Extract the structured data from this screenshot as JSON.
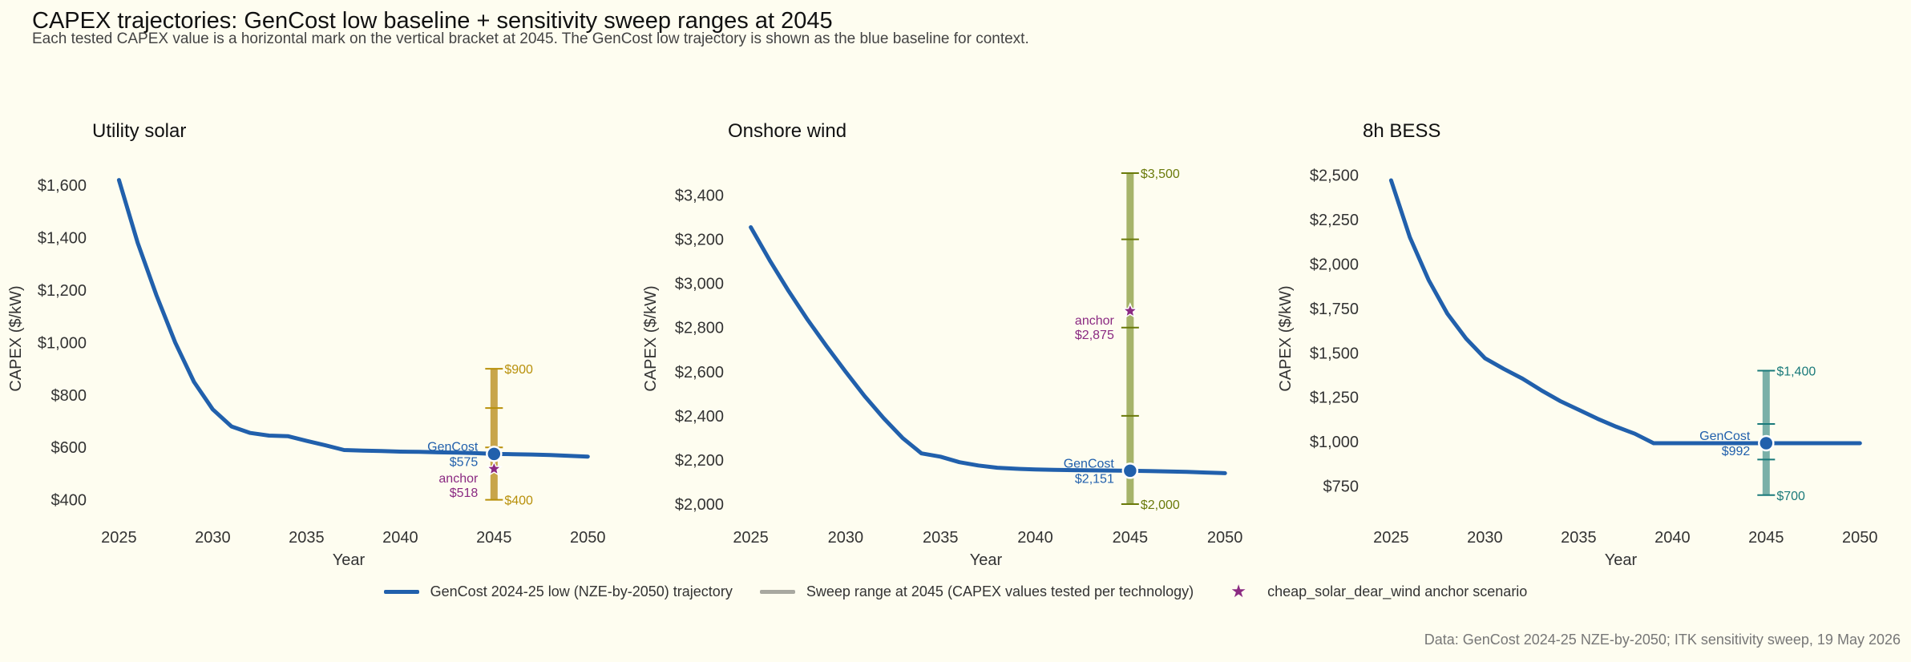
{
  "figure": {
    "title": "CAPEX trajectories: GenCost low baseline + sensitivity sweep ranges at 2045",
    "subtitle": "Each tested CAPEX value is a horizontal mark on the vertical bracket at 2045. The GenCost low trajectory is shown as the blue baseline for context.",
    "source": "Data: GenCost 2024-25 NZE-by-2050; ITK sensitivity sweep, 19 May 2026"
  },
  "legend": {
    "items": [
      {
        "label": "GenCost 2024-25 low (NZE-by-2050) trajectory",
        "color": "#2160ac",
        "kind": "line"
      },
      {
        "label": "Sweep range at 2045 (CAPEX values tested per technology)",
        "color": "#a8a8a0",
        "kind": "line"
      },
      {
        "label": "cheap_solar_dear_wind anchor scenario",
        "color": "#8b2a82",
        "kind": "star"
      }
    ]
  },
  "colors": {
    "baseline": "#2160ac",
    "anchor": "#8b2a82"
  },
  "chart_data": [
    {
      "type": "line",
      "title": "Utility solar",
      "xlabel": "Year",
      "ylabel": "CAPEX ($/kW)",
      "xlim": [
        2024,
        2050.5
      ],
      "ylim": [
        350,
        1680
      ],
      "xticks": [
        2025,
        2030,
        2035,
        2040,
        2045,
        2050
      ],
      "yticks": [
        400,
        600,
        800,
        1000,
        1200,
        1400,
        1600
      ],
      "yticklabels": [
        "$400",
        "$600",
        "$800",
        "$1,000",
        "$1,200",
        "$1,400",
        "$1,600"
      ],
      "baseline": {
        "x": [
          2025,
          2026,
          2027,
          2028,
          2029,
          2030,
          2031,
          2032,
          2033,
          2034,
          2035,
          2036,
          2037,
          2038,
          2039,
          2040,
          2041,
          2042,
          2043,
          2044,
          2045,
          2046,
          2047,
          2048,
          2049,
          2050
        ],
        "y": [
          1620,
          1380,
          1180,
          1000,
          850,
          745,
          680,
          655,
          645,
          643,
          625,
          608,
          590,
          588,
          586,
          584,
          583,
          581,
          580,
          578,
          575,
          574,
          573,
          571,
          568,
          565
        ],
        "marker": {
          "x": 2045,
          "y": 575,
          "label": "GenCost",
          "value_label": "$575"
        }
      },
      "sweep": {
        "x": 2045,
        "color": "#c8a54a",
        "label_color": "#b8900a",
        "values": [
          400,
          600,
          750,
          900
        ],
        "min_label": "$400",
        "max_label": "$900"
      },
      "anchor": {
        "x": 2045,
        "y": 518,
        "label": "anchor",
        "value_label": "$518",
        "label_side": "below"
      }
    },
    {
      "type": "line",
      "title": "Onshore wind",
      "xlabel": "Year",
      "ylabel": "CAPEX ($/kW)",
      "xlim": [
        2024.3,
        2050.5
      ],
      "ylim": [
        1960,
        3540
      ],
      "xticks": [
        2025,
        2030,
        2035,
        2040,
        2045,
        2050
      ],
      "yticks": [
        2000,
        2200,
        2400,
        2600,
        2800,
        3000,
        3200,
        3400
      ],
      "yticklabels": [
        "$2,000",
        "$2,200",
        "$2,400",
        "$2,600",
        "$2,800",
        "$3,000",
        "$3,200",
        "$3,400"
      ],
      "baseline": {
        "x": [
          2025,
          2026,
          2027,
          2028,
          2029,
          2030,
          2031,
          2032,
          2033,
          2034,
          2035,
          2036,
          2037,
          2038,
          2039,
          2040,
          2041,
          2042,
          2043,
          2044,
          2045,
          2046,
          2047,
          2048,
          2049,
          2050
        ],
        "y": [
          3255,
          3105,
          2965,
          2835,
          2715,
          2600,
          2490,
          2390,
          2300,
          2230,
          2215,
          2190,
          2175,
          2165,
          2160,
          2157,
          2155,
          2154,
          2153,
          2152,
          2151,
          2150,
          2148,
          2146,
          2143,
          2140
        ],
        "marker": {
          "x": 2045,
          "y": 2151,
          "label": "GenCost",
          "value_label": "$2,151"
        }
      },
      "sweep": {
        "x": 2045,
        "color": "#a6b46a",
        "label_color": "#6a7a0a",
        "values": [
          2000,
          2400,
          2800,
          3200,
          3500
        ],
        "min_label": "$2,000",
        "max_label": "$3,500"
      },
      "anchor": {
        "x": 2045,
        "y": 2875,
        "label": "anchor",
        "value_label": "$2,875",
        "label_side": "above"
      }
    },
    {
      "type": "line",
      "title": "8h BESS",
      "xlabel": "Year",
      "ylabel": "CAPEX ($/kW)",
      "xlim": [
        2024,
        2050.5
      ],
      "ylim": [
        600,
        2560
      ],
      "xticks": [
        2025,
        2030,
        2035,
        2040,
        2045,
        2050
      ],
      "yticks": [
        750,
        1000,
        1250,
        1500,
        1750,
        2000,
        2250,
        2500
      ],
      "yticklabels": [
        "$750",
        "$1,000",
        "$1,250",
        "$1,500",
        "$1,750",
        "$2,000",
        "$2,250",
        "$2,500"
      ],
      "baseline": {
        "x": [
          2025,
          2026,
          2027,
          2028,
          2029,
          2030,
          2031,
          2032,
          2033,
          2034,
          2035,
          2036,
          2037,
          2038,
          2039,
          2040,
          2041,
          2042,
          2043,
          2044,
          2045,
          2046,
          2047,
          2048,
          2049,
          2050
        ],
        "y": [
          2470,
          2150,
          1910,
          1720,
          1580,
          1470,
          1410,
          1355,
          1290,
          1230,
          1180,
          1130,
          1085,
          1045,
          992,
          992,
          992,
          992,
          992,
          992,
          992,
          992,
          992,
          992,
          992,
          992
        ],
        "marker": {
          "x": 2045,
          "y": 992,
          "label": "GenCost",
          "value_label": "$992"
        }
      },
      "sweep": {
        "x": 2045,
        "color": "#7ab0a8",
        "label_color": "#1a7a7a",
        "values": [
          700,
          900,
          1100,
          1400
        ],
        "min_label": "$700",
        "max_label": "$1,400"
      },
      "anchor": null
    }
  ]
}
